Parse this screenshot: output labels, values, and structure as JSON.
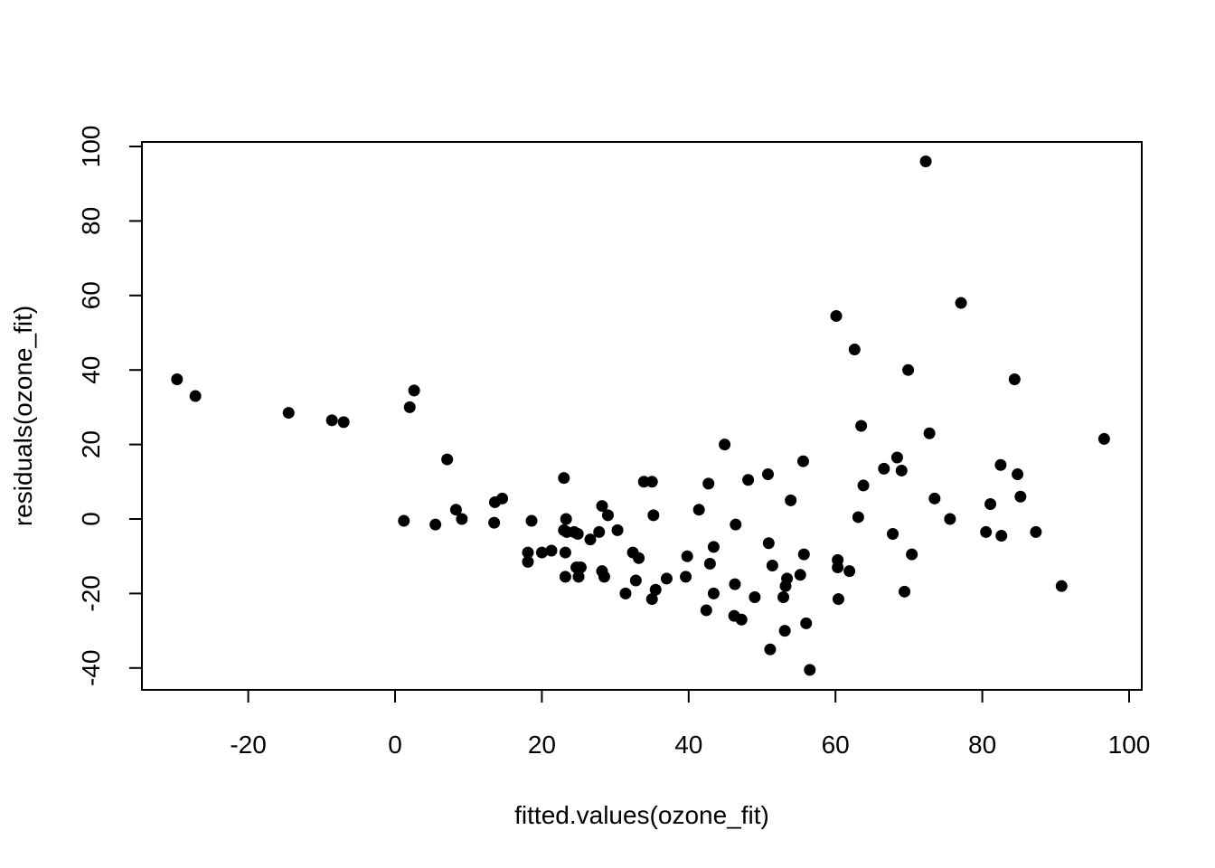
{
  "chart_data": {
    "type": "scatter",
    "title": "",
    "xlabel": "fitted.values(ozone_fit)",
    "ylabel": "residuals(ozone_fit)",
    "xlim": [
      -35,
      100
    ],
    "ylim": [
      -45,
      100
    ],
    "xticks": [
      -20,
      0,
      20,
      40,
      60,
      80,
      100
    ],
    "yticks": [
      -40,
      -20,
      0,
      20,
      40,
      60,
      80,
      100
    ],
    "xtick_labels": [
      "-20",
      "0",
      "20",
      "40",
      "60",
      "80",
      "100"
    ],
    "ytick_labels": [
      "-40",
      "-20",
      "0",
      "20",
      "40",
      "60",
      "80",
      "100"
    ],
    "grid": false,
    "marker_color": "#000000",
    "x": [
      -29.7,
      -27.2,
      -14.5,
      -8.6,
      -7.0,
      1.2,
      2.0,
      2.6,
      5.5,
      7.1,
      8.3,
      9.1,
      13.5,
      13.6,
      14.6,
      18.1,
      18.1,
      18.6,
      20.0,
      21.3,
      23.0,
      23.0,
      23.2,
      23.2,
      23.3,
      23.4,
      24.4,
      24.7,
      25.0,
      24.9,
      25.3,
      26.6,
      27.8,
      28.2,
      28.2,
      28.5,
      29.0,
      30.3,
      31.4,
      32.4,
      32.8,
      33.2,
      33.9,
      35.0,
      35.0,
      35.2,
      35.5,
      37.0,
      39.6,
      39.8,
      41.4,
      42.4,
      42.7,
      42.9,
      43.4,
      43.4,
      44.9,
      46.2,
      46.3,
      46.4,
      47.2,
      48.1,
      49.0,
      50.8,
      50.9,
      51.1,
      51.4,
      52.9,
      53.1,
      53.2,
      53.4,
      53.9,
      55.2,
      55.6,
      55.7,
      56.0,
      56.5,
      60.1,
      60.3,
      60.3,
      60.4,
      61.9,
      62.6,
      63.1,
      63.5,
      63.8,
      66.6,
      67.8,
      68.4,
      69.0,
      69.4,
      69.9,
      70.4,
      72.3,
      72.8,
      73.5,
      75.6,
      77.1,
      80.5,
      81.1,
      82.5,
      82.6,
      84.4,
      84.8,
      85.2,
      87.3,
      90.8,
      96.6
    ],
    "y": [
      37.5,
      33.0,
      28.5,
      26.5,
      26.0,
      -0.5,
      30.0,
      34.5,
      -1.5,
      16.0,
      2.5,
      0.0,
      -1.0,
      4.5,
      5.5,
      -9.0,
      -11.5,
      -0.5,
      -9.0,
      -8.5,
      11.0,
      -3.0,
      -15.5,
      -9.0,
      0.0,
      -3.5,
      -3.5,
      -13.0,
      -15.5,
      -4.0,
      -13.0,
      -5.5,
      -3.5,
      -14.0,
      3.5,
      -15.5,
      1.0,
      -3.0,
      -20.0,
      -9.0,
      -16.5,
      -10.5,
      10.0,
      10.0,
      -21.5,
      1.0,
      -19.0,
      -16.0,
      -15.5,
      -10.0,
      2.5,
      -24.5,
      9.5,
      -12.0,
      -7.5,
      -20.0,
      20.0,
      -26.0,
      -17.5,
      -1.5,
      -27.0,
      10.5,
      -21.0,
      12.0,
      -6.5,
      -35.0,
      -12.5,
      -21.0,
      -30.0,
      -18.0,
      -16.0,
      5.0,
      -15.0,
      15.5,
      -9.5,
      -28.0,
      -40.5,
      54.5,
      -11.0,
      -13.0,
      -21.5,
      -14.0,
      45.5,
      0.5,
      25.0,
      9.0,
      13.5,
      -4.0,
      16.5,
      13.0,
      -19.5,
      40.0,
      -9.5,
      96.0,
      23.0,
      5.5,
      0.0,
      58.0,
      -3.5,
      4.0,
      14.5,
      -4.5,
      37.5,
      12.0,
      6.0,
      -3.5,
      -18.0,
      21.5
    ]
  }
}
